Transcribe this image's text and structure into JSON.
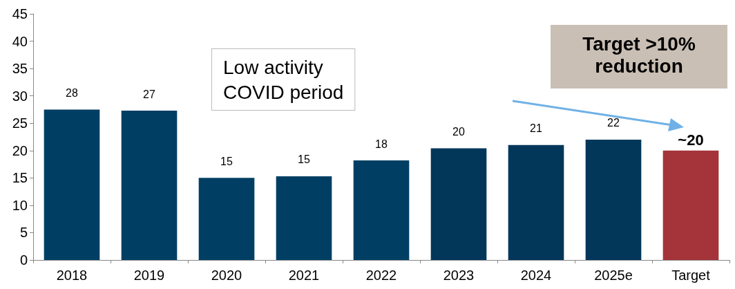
{
  "chart_data": {
    "type": "bar",
    "categories": [
      "2018",
      "2019",
      "2020",
      "2021",
      "2022",
      "2023",
      "2024",
      "2025e",
      "Target"
    ],
    "values": [
      27.5,
      27.3,
      15,
      15.3,
      18.2,
      20.4,
      21,
      22,
      20
    ],
    "colors": [
      "#003f63",
      "#003f63",
      "#003f63",
      "#003f63",
      "#003f63",
      "#02375a",
      "#02375a",
      "#02375a",
      "#a4343a"
    ],
    "value_labels": [
      "28",
      "27",
      "15",
      "15",
      "18",
      "20",
      "21",
      "22",
      "~20"
    ],
    "ylim": [
      0,
      45
    ],
    "yticks": [
      0,
      5,
      10,
      15,
      20,
      25,
      30,
      35,
      40,
      45
    ],
    "grid": false,
    "annotations": [
      "Low activity\nCOVID period",
      "Target >10%\nreduction"
    ]
  }
}
